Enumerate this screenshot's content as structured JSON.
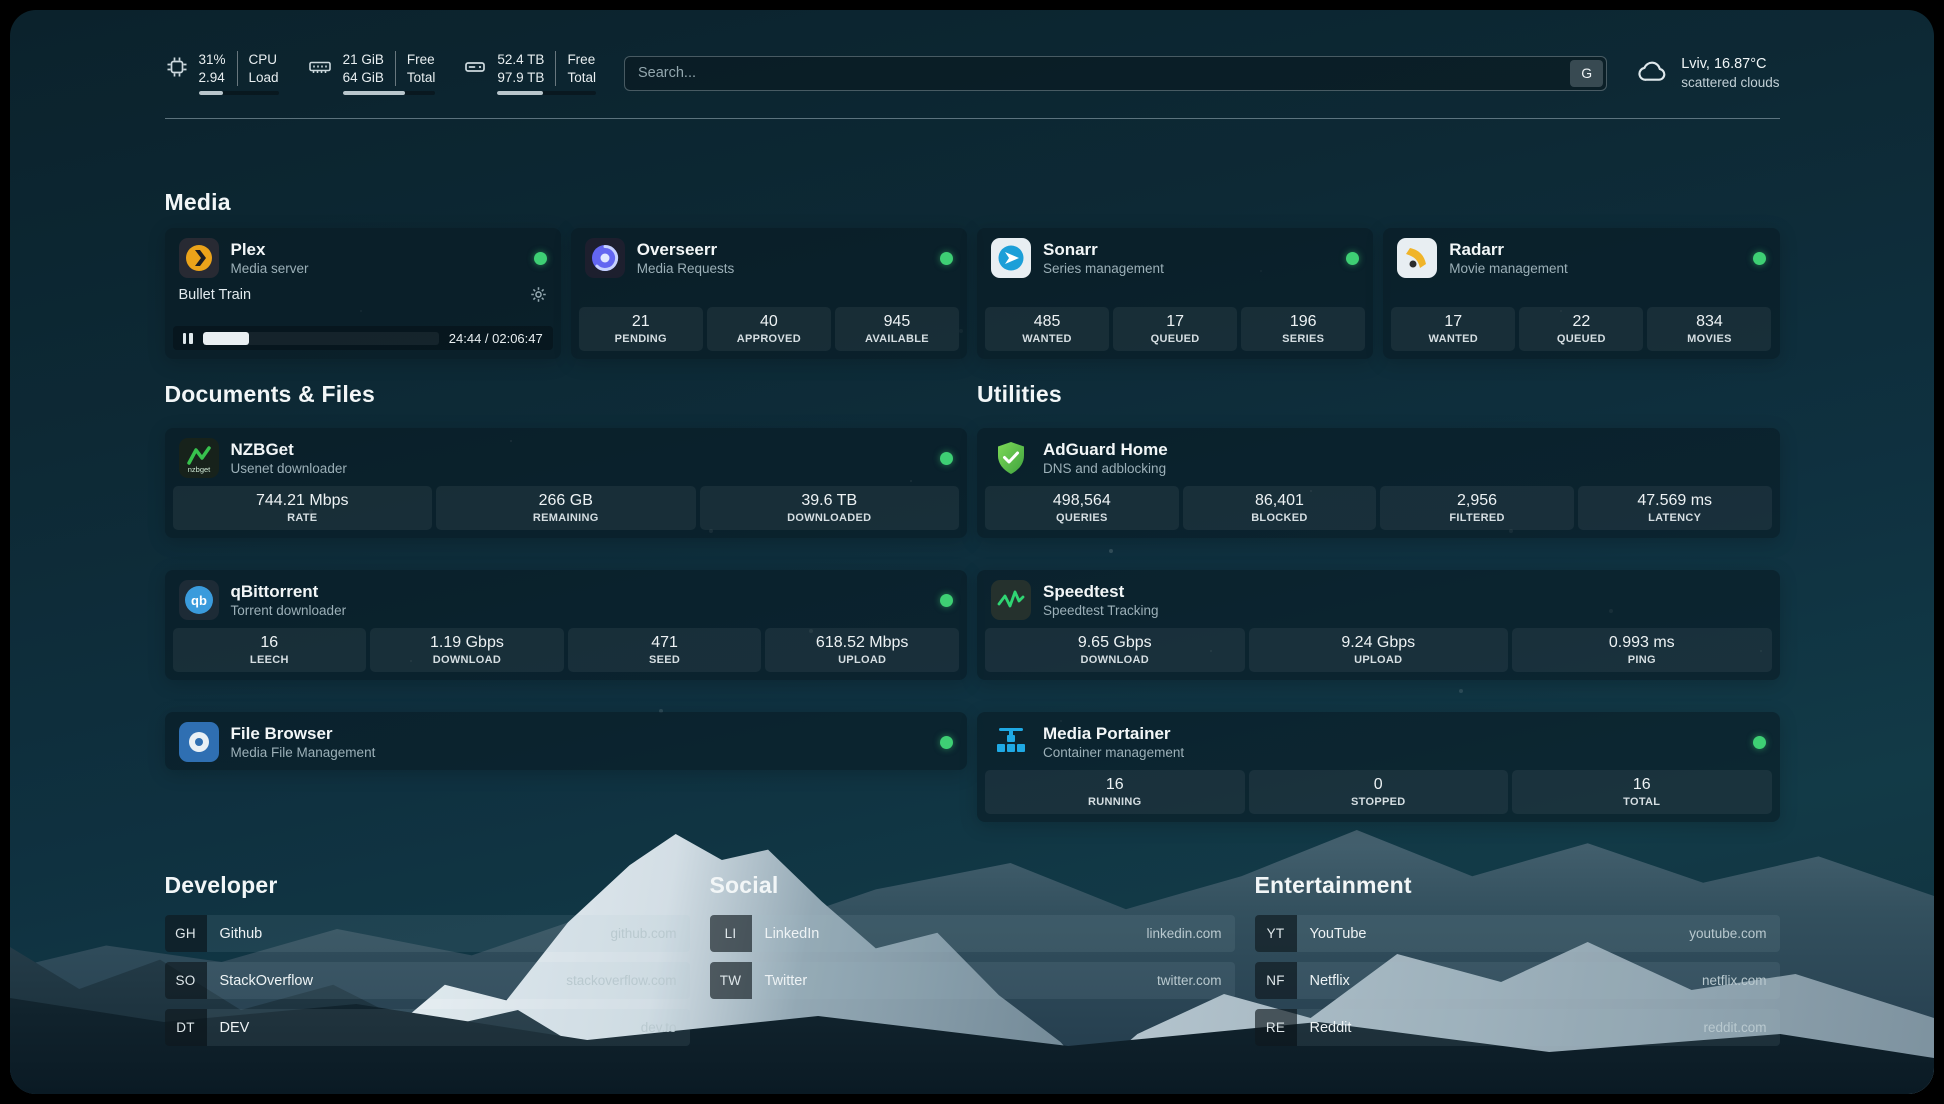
{
  "topbar": {
    "cpu": {
      "value_top": "31%",
      "value_bottom": "2.94",
      "label_top": "CPU",
      "label_bottom": "Load",
      "progress": 31
    },
    "memory": {
      "value_top": "21 GiB",
      "value_bottom": "64 GiB",
      "label_top": "Free",
      "label_bottom": "Total",
      "progress": 67
    },
    "disk": {
      "value_top": "52.4 TB",
      "value_bottom": "97.9 TB",
      "label_top": "Free",
      "label_bottom": "Total",
      "progress": 46
    },
    "search": {
      "placeholder": "Search...",
      "button_label": "G"
    },
    "weather": {
      "location": "Lviv, 16.87°C",
      "condition": "scattered clouds"
    }
  },
  "sections": {
    "media": {
      "title": "Media",
      "plex": {
        "name": "Plex",
        "subtitle": "Media server",
        "now_playing": "Bullet Train",
        "time": "24:44 / 02:06:47",
        "progress": 19.5
      },
      "overseerr": {
        "name": "Overseerr",
        "subtitle": "Media Requests",
        "stats": [
          {
            "value": "21",
            "label": "PENDING"
          },
          {
            "value": "40",
            "label": "APPROVED"
          },
          {
            "value": "945",
            "label": "AVAILABLE"
          }
        ]
      },
      "sonarr": {
        "name": "Sonarr",
        "subtitle": "Series management",
        "stats": [
          {
            "value": "485",
            "label": "WANTED"
          },
          {
            "value": "17",
            "label": "QUEUED"
          },
          {
            "value": "196",
            "label": "SERIES"
          }
        ]
      },
      "radarr": {
        "name": "Radarr",
        "subtitle": "Movie management",
        "stats": [
          {
            "value": "17",
            "label": "WANTED"
          },
          {
            "value": "22",
            "label": "QUEUED"
          },
          {
            "value": "834",
            "label": "MOVIES"
          }
        ]
      }
    },
    "documents": {
      "title": "Documents & Files",
      "nzbget": {
        "name": "NZBGet",
        "subtitle": "Usenet downloader",
        "stats": [
          {
            "value": "744.21 Mbps",
            "label": "RATE"
          },
          {
            "value": "266 GB",
            "label": "REMAINING"
          },
          {
            "value": "39.6 TB",
            "label": "DOWNLOADED"
          }
        ]
      },
      "qbittorrent": {
        "name": "qBittorrent",
        "subtitle": "Torrent downloader",
        "stats": [
          {
            "value": "16",
            "label": "LEECH"
          },
          {
            "value": "1.19 Gbps",
            "label": "DOWNLOAD"
          },
          {
            "value": "471",
            "label": "SEED"
          },
          {
            "value": "618.52 Mbps",
            "label": "UPLOAD"
          }
        ]
      },
      "filebrowser": {
        "name": "File Browser",
        "subtitle": "Media File Management"
      }
    },
    "utilities": {
      "title": "Utilities",
      "adguard": {
        "name": "AdGuard Home",
        "subtitle": "DNS and adblocking",
        "stats": [
          {
            "value": "498,564",
            "label": "QUERIES"
          },
          {
            "value": "86,401",
            "label": "BLOCKED"
          },
          {
            "value": "2,956",
            "label": "FILTERED"
          },
          {
            "value": "47.569 ms",
            "label": "LATENCY"
          }
        ]
      },
      "speedtest": {
        "name": "Speedtest",
        "subtitle": "Speedtest Tracking",
        "stats": [
          {
            "value": "9.65 Gbps",
            "label": "DOWNLOAD"
          },
          {
            "value": "9.24 Gbps",
            "label": "UPLOAD"
          },
          {
            "value": "0.993 ms",
            "label": "PING"
          }
        ]
      },
      "portainer": {
        "name": "Media Portainer",
        "subtitle": "Container management",
        "stats": [
          {
            "value": "16",
            "label": "RUNNING"
          },
          {
            "value": "0",
            "label": "STOPPED"
          },
          {
            "value": "16",
            "label": "TOTAL"
          }
        ]
      }
    },
    "bookmarks": {
      "developer": {
        "title": "Developer",
        "items": [
          {
            "abbr": "GH",
            "name": "Github",
            "url": "github.com"
          },
          {
            "abbr": "SO",
            "name": "StackOverflow",
            "url": "stackoverflow.com"
          },
          {
            "abbr": "DT",
            "name": "DEV",
            "url": "dev.to"
          }
        ]
      },
      "social": {
        "title": "Social",
        "items": [
          {
            "abbr": "LI",
            "name": "LinkedIn",
            "url": "linkedin.com"
          },
          {
            "abbr": "TW",
            "name": "Twitter",
            "url": "twitter.com"
          }
        ]
      },
      "entertainment": {
        "title": "Entertainment",
        "items": [
          {
            "abbr": "YT",
            "name": "YouTube",
            "url": "youtube.com"
          },
          {
            "abbr": "NF",
            "name": "Netflix",
            "url": "netflix.com"
          },
          {
            "abbr": "RE",
            "name": "Reddit",
            "url": "reddit.com"
          }
        ]
      }
    }
  },
  "colors": {
    "status_online": "#3ecf74",
    "accent_snow": "#eef4f7"
  }
}
